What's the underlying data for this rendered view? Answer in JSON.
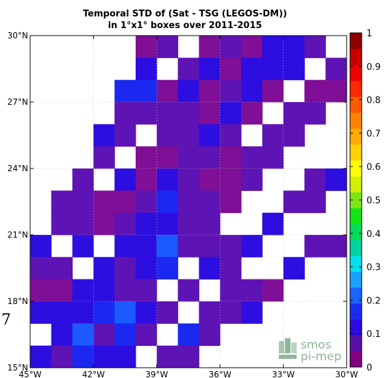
{
  "chart_data": {
    "type": "heatmap",
    "title": "Temporal STD of (Sat - TSG (LEGOS-DM))",
    "subtitle": "in 1°x1° boxes over 2011-2015",
    "x_ticks": [
      "45°W",
      "42°W",
      "39°W",
      "36°W",
      "33°W",
      "30°W"
    ],
    "y_ticks": [
      "15°N",
      "18°N",
      "21°N",
      "24°N",
      "27°N",
      "30°N"
    ],
    "xlim": [
      -45,
      -30
    ],
    "ylim": [
      15,
      30
    ],
    "grid": true,
    "colorbar": {
      "min": 0,
      "max": 1,
      "ticks": [
        "0",
        "0.1",
        "0.2",
        "0.3",
        "0.4",
        "0.5",
        "0.6",
        "0.7",
        "0.8",
        "0.9",
        "1"
      ],
      "colors": [
        "#800080",
        "#5a0fa8",
        "#2a0ae0",
        "#1a2cf2",
        "#1a64ff",
        "#1aa0ff",
        "#00e0f0",
        "#00d2a0",
        "#00dc5a",
        "#14e614",
        "#7ce614",
        "#d2f000",
        "#ffff00",
        "#ffd200",
        "#ffaa00",
        "#ff8200",
        "#ff5a00",
        "#ff2800",
        "#f00000",
        "#c80000",
        "#8c0000"
      ]
    },
    "cell_colors": {
      "purple": "#7e0f96",
      "indigo": "#5e13b4",
      "blue": "#2c0ee0",
      "bright_blue": "#1a28f0",
      "light_blue": "#1a5aff"
    },
    "rows": [
      {
        "lat": 29.5,
        "cells": [
          null,
          null,
          null,
          null,
          null,
          "purple",
          "indigo",
          null,
          "purple",
          "indigo",
          "purple",
          "blue",
          "blue",
          "indigo",
          null
        ]
      },
      {
        "lat": 28.5,
        "cells": [
          null,
          null,
          null,
          null,
          null,
          "blue",
          null,
          "indigo",
          "blue",
          "purple",
          "blue",
          "blue",
          "blue",
          null,
          "indigo"
        ]
      },
      {
        "lat": 27.5,
        "cells": [
          null,
          null,
          null,
          null,
          "bright_blue",
          "bright_blue",
          "purple",
          "blue",
          "purple",
          "indigo",
          "blue",
          "purple",
          null,
          "purple",
          "purple"
        ]
      },
      {
        "lat": 26.5,
        "cells": [
          null,
          null,
          null,
          null,
          "indigo",
          "indigo",
          "indigo",
          "indigo",
          "purple",
          "blue",
          "purple",
          null,
          "indigo",
          "indigo",
          null
        ]
      },
      {
        "lat": 25.5,
        "cells": [
          null,
          null,
          null,
          "blue",
          "indigo",
          null,
          "indigo",
          "indigo",
          "blue",
          "indigo",
          null,
          "indigo",
          "indigo",
          null,
          null
        ]
      },
      {
        "lat": 24.5,
        "cells": [
          null,
          null,
          null,
          "indigo",
          null,
          "purple",
          "purple",
          "indigo",
          "indigo",
          "purple",
          "indigo",
          "indigo",
          null,
          null,
          null
        ]
      },
      {
        "lat": 23.5,
        "cells": [
          null,
          null,
          "indigo",
          null,
          "blue",
          "purple",
          "blue",
          "indigo",
          "purple",
          "purple",
          "indigo",
          null,
          null,
          "indigo",
          "blue"
        ]
      },
      {
        "lat": 22.5,
        "cells": [
          null,
          "indigo",
          "indigo",
          "purple",
          "purple",
          "indigo",
          "bright_blue",
          "indigo",
          "indigo",
          "purple",
          null,
          null,
          "indigo",
          "indigo",
          null
        ]
      },
      {
        "lat": 21.5,
        "cells": [
          null,
          "indigo",
          "indigo",
          "purple",
          "indigo",
          "blue",
          "blue",
          "indigo",
          "indigo",
          null,
          null,
          "blue",
          null,
          null,
          null
        ]
      },
      {
        "lat": 20.5,
        "cells": [
          "blue",
          null,
          "blue",
          null,
          "blue",
          "blue",
          "light_blue",
          "indigo",
          "indigo",
          "indigo",
          "blue",
          null,
          null,
          "indigo",
          "indigo"
        ]
      },
      {
        "lat": 19.5,
        "cells": [
          "indigo",
          "indigo",
          null,
          "blue",
          "indigo",
          "blue",
          "bright_blue",
          null,
          "blue",
          "indigo",
          null,
          null,
          "blue",
          null,
          null
        ]
      },
      {
        "lat": 18.5,
        "cells": [
          "purple",
          "purple",
          "blue",
          "blue",
          "indigo",
          "indigo",
          null,
          "indigo",
          null,
          "indigo",
          "indigo",
          "purple",
          null,
          null,
          null
        ]
      },
      {
        "lat": 17.5,
        "cells": [
          "blue",
          "blue",
          "blue",
          "bright_blue",
          "light_blue",
          "blue",
          "indigo",
          null,
          "indigo",
          "indigo",
          "blue",
          null,
          null,
          null,
          null
        ]
      },
      {
        "lat": 16.5,
        "cells": [
          null,
          "blue",
          "light_blue",
          "indigo",
          "bright_blue",
          "indigo",
          null,
          "bright_blue",
          "indigo",
          null,
          null,
          null,
          null,
          null,
          null
        ]
      },
      {
        "lat": 15.5,
        "cells": [
          "blue",
          "indigo",
          "bright_blue",
          "blue",
          "blue",
          null,
          "indigo",
          "indigo",
          null,
          null,
          null,
          null,
          null,
          null,
          null
        ]
      }
    ]
  },
  "stray_glyph": "7",
  "logo": {
    "line1": "smos",
    "line2": "pi-mep",
    "color": "#8fb49a"
  }
}
